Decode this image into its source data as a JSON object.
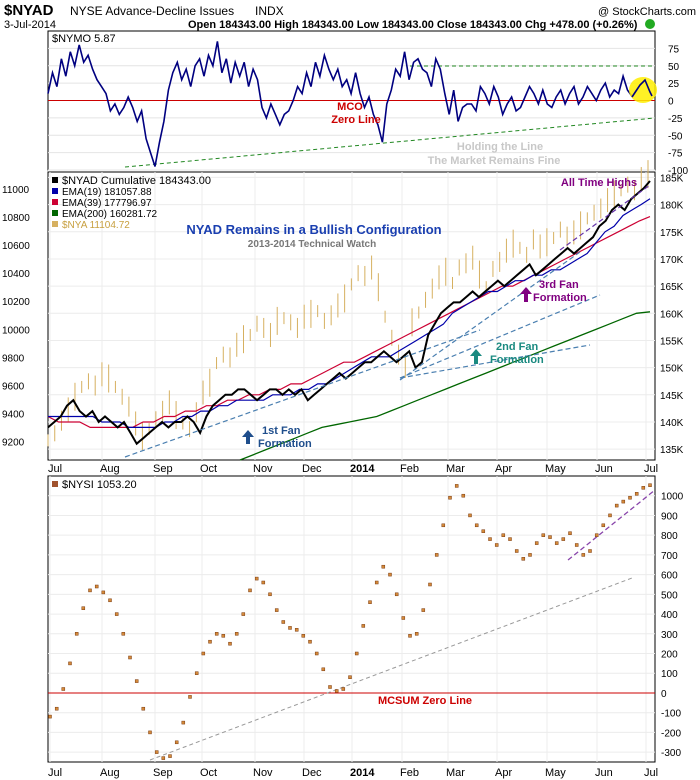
{
  "header": {
    "symbol": "$NYAD",
    "name": "NYSE Advance-Decline Issues",
    "exchange": "INDX",
    "watermark": "@ StockCharts.com",
    "date": "3-Jul-2014",
    "ohlc": "Open 184343.00   High 184343.00   Low 184343.00   Close 184343.00   Chg +478.00 (+0.26%)",
    "change_arrow_color": "#22aa22"
  },
  "chart_data": [
    {
      "panel": "NYMO",
      "type": "line",
      "legend": "$NYMO 5.87",
      "ylim": [
        -100,
        100
      ],
      "yticks": [
        75,
        50,
        25,
        0,
        -25,
        -50,
        -75,
        -100
      ],
      "color": "#000080",
      "series": [
        {
          "name": "$NYMO",
          "values": [
            10,
            40,
            20,
            60,
            35,
            70,
            50,
            80,
            55,
            65,
            45,
            30,
            20,
            10,
            -15,
            -5,
            -20,
            -10,
            5,
            -10,
            -30,
            -15,
            -55,
            -75,
            -95,
            -60,
            -30,
            15,
            40,
            55,
            30,
            45,
            20,
            50,
            60,
            35,
            65,
            50,
            85,
            40,
            60,
            25,
            55,
            35,
            55,
            20,
            45,
            30,
            -10,
            -25,
            -5,
            -20,
            -35,
            -20,
            -15,
            0,
            20,
            10,
            40,
            20,
            55,
            35,
            65,
            45,
            30,
            45,
            20,
            30,
            10,
            40,
            10,
            -10,
            5,
            -20,
            -35,
            -60,
            -5,
            15,
            45,
            35,
            70,
            30,
            55,
            60,
            45,
            40,
            20,
            60,
            45,
            10,
            -20,
            15,
            -30,
            -10,
            -5,
            -5,
            -15,
            20,
            10,
            -5,
            20,
            5,
            -20,
            -5,
            5,
            -15,
            -10,
            5,
            20,
            10,
            -5,
            15,
            -5,
            -10,
            5,
            15,
            -5,
            10,
            20,
            -5,
            5,
            20,
            10,
            0,
            15,
            25,
            5,
            15,
            10,
            35,
            15,
            6
          ]
        }
      ],
      "annotations": [
        "MCO",
        "Zero Line",
        "Holding the Line",
        "The Market Remains Fine"
      ],
      "zero_line_color": "#cc0000"
    },
    {
      "panel": "NYAD",
      "type": "line",
      "title": "NYAD Remains in a Bullish Configuration",
      "subtitle": "2013-2014 Technical Watch",
      "legend": [
        "$NYAD Cumulative 184343.00",
        "EMA(19) 181057.88",
        "EMA(39) 177796.97",
        "EMA(200) 160281.72",
        "$NYA 11104.72"
      ],
      "right_ylim": [
        133000,
        186000
      ],
      "right_yticks": [
        185000,
        180000,
        175000,
        170000,
        165000,
        160000,
        155000,
        150000,
        145000,
        140000,
        135000
      ],
      "right_ytick_labels": [
        "185K",
        "180K",
        "175K",
        "170K",
        "165K",
        "160K",
        "155K",
        "150K",
        "145K",
        "140K",
        "135K"
      ],
      "left_ylim": [
        9070,
        11120
      ],
      "left_yticks": [
        11000,
        10800,
        10600,
        10400,
        10200,
        10000,
        9800,
        9600,
        9400,
        9200
      ],
      "x_labels": [
        "Jul",
        "Aug",
        "Sep",
        "Oct",
        "Nov",
        "Dec",
        "2014",
        "Feb",
        "Mar",
        "Apr",
        "May",
        "Jun",
        "Jul"
      ],
      "nyad_cumulative": [
        139,
        140,
        141,
        143,
        144,
        142,
        141,
        142,
        140,
        141,
        140,
        139,
        140,
        138,
        136,
        137,
        138,
        139,
        140,
        139,
        140,
        140,
        141,
        140,
        138,
        141,
        143,
        144,
        145,
        145,
        146,
        146,
        145,
        144,
        145,
        146,
        146,
        145,
        146,
        145,
        146,
        144,
        145,
        146,
        147,
        148,
        149,
        148,
        149,
        150,
        151,
        151,
        152,
        153,
        152,
        151,
        152,
        153,
        150,
        151,
        156,
        158,
        160,
        161,
        162,
        162,
        163,
        164,
        163,
        164,
        165,
        166,
        165,
        166,
        167,
        168,
        169,
        167,
        168,
        169,
        170,
        171,
        172,
        171,
        172,
        173,
        174,
        176,
        177,
        179,
        180,
        179,
        181,
        182,
        183,
        184.34
      ],
      "ema19": [
        141,
        141,
        141,
        141,
        141,
        141,
        140,
        140,
        140,
        139,
        139,
        139,
        139,
        140,
        140,
        141,
        141,
        142,
        142,
        143,
        143,
        144,
        144,
        144,
        144,
        145,
        145,
        145,
        146,
        146,
        147,
        147,
        148,
        149,
        150,
        151,
        152,
        152,
        152,
        153,
        154,
        155,
        156,
        157,
        158,
        160,
        161,
        162,
        163,
        164,
        164,
        165,
        166,
        166,
        167,
        167,
        168,
        168,
        169,
        170,
        171,
        173,
        175,
        176,
        178,
        179,
        180,
        181.06
      ],
      "ema39": [
        141,
        140,
        140,
        140,
        139,
        139,
        139,
        139,
        139,
        140,
        140,
        141,
        141,
        142,
        142,
        143,
        143,
        144,
        144,
        145,
        145,
        146,
        146,
        147,
        147,
        148,
        149,
        150,
        151,
        151,
        152,
        153,
        154,
        155,
        156,
        157,
        158,
        159,
        160,
        161,
        162,
        163,
        164,
        165,
        165,
        166,
        167,
        168,
        169,
        170,
        171,
        172,
        173,
        174,
        175,
        176,
        177,
        177.8
      ],
      "ema200": [
        133,
        134,
        135,
        136,
        137,
        138,
        139,
        139.5,
        140,
        140.5,
        141,
        142,
        143,
        144,
        145,
        146,
        147,
        148,
        149,
        150,
        151,
        152,
        153,
        154,
        155,
        156,
        157,
        158,
        159,
        160,
        160.28
      ],
      "nya": [
        9210,
        9260,
        9350,
        9430,
        9520,
        9590,
        9630,
        9600,
        9680,
        9650,
        9590,
        9520,
        9450,
        9330,
        9240,
        9290,
        9360,
        9420,
        9480,
        9390,
        9330,
        9290,
        9410,
        9550,
        9620,
        9760,
        9820,
        9800,
        9890,
        9930,
        9960,
        10040,
        10010,
        9960,
        10060,
        10080,
        10050,
        10010,
        10090,
        10110,
        10130,
        10060,
        10100,
        10170,
        10220,
        10320,
        10400,
        10380,
        10440,
        10300,
        10090,
        9940,
        9820,
        9740,
        10050,
        10120,
        10210,
        10290,
        10370,
        10410,
        10330,
        10440,
        10470,
        10510,
        10390,
        10300,
        10430,
        10480,
        10560,
        10610,
        10580,
        10530,
        10640,
        10590,
        10620,
        10650,
        10710,
        10660,
        10690,
        10740,
        10790,
        10830,
        10860,
        10920,
        10960,
        10990,
        11030,
        10990,
        11070,
        11104.72
      ],
      "annotations": [
        "All Time Highs",
        "1st Fan",
        "Formation",
        "2nd Fan",
        "Formation",
        "3rd Fan",
        "Formation"
      ],
      "colors": {
        "nyad": "#000000",
        "ema19": "#0000aa",
        "ema39": "#cc0033",
        "ema200": "#006600",
        "nya": "#d6b060",
        "title": "#1a3fb0"
      }
    },
    {
      "panel": "NYSI",
      "type": "scatter",
      "legend": "$NYSI 1053.20",
      "ylim": [
        -350,
        1100
      ],
      "yticks": [
        1000,
        900,
        800,
        700,
        600,
        500,
        400,
        300,
        200,
        100,
        0,
        -100,
        -200,
        -300
      ],
      "x_labels": [
        "Jul",
        "Aug",
        "Sep",
        "Oct",
        "Nov",
        "Dec",
        "2014",
        "Feb",
        "Mar",
        "Apr",
        "May",
        "Jun",
        "Jul"
      ],
      "series": [
        {
          "name": "$NYSI",
          "values": [
            -120,
            -80,
            20,
            150,
            300,
            430,
            520,
            540,
            510,
            470,
            400,
            300,
            180,
            60,
            -80,
            -200,
            -300,
            -330,
            -320,
            -250,
            -150,
            -20,
            100,
            200,
            260,
            300,
            290,
            250,
            300,
            400,
            520,
            580,
            560,
            500,
            420,
            360,
            330,
            320,
            290,
            260,
            200,
            120,
            30,
            10,
            20,
            80,
            200,
            340,
            460,
            560,
            640,
            600,
            500,
            380,
            290,
            300,
            420,
            550,
            700,
            850,
            990,
            1050,
            1000,
            900,
            850,
            820,
            780,
            750,
            800,
            780,
            720,
            680,
            700,
            760,
            800,
            790,
            760,
            780,
            810,
            750,
            700,
            720,
            800,
            850,
            900,
            950,
            970,
            990,
            1010,
            1040,
            1053.2
          ]
        }
      ],
      "annotations": [
        "MCSUM Zero Line"
      ],
      "zero_line_color": "#cc0000"
    }
  ]
}
